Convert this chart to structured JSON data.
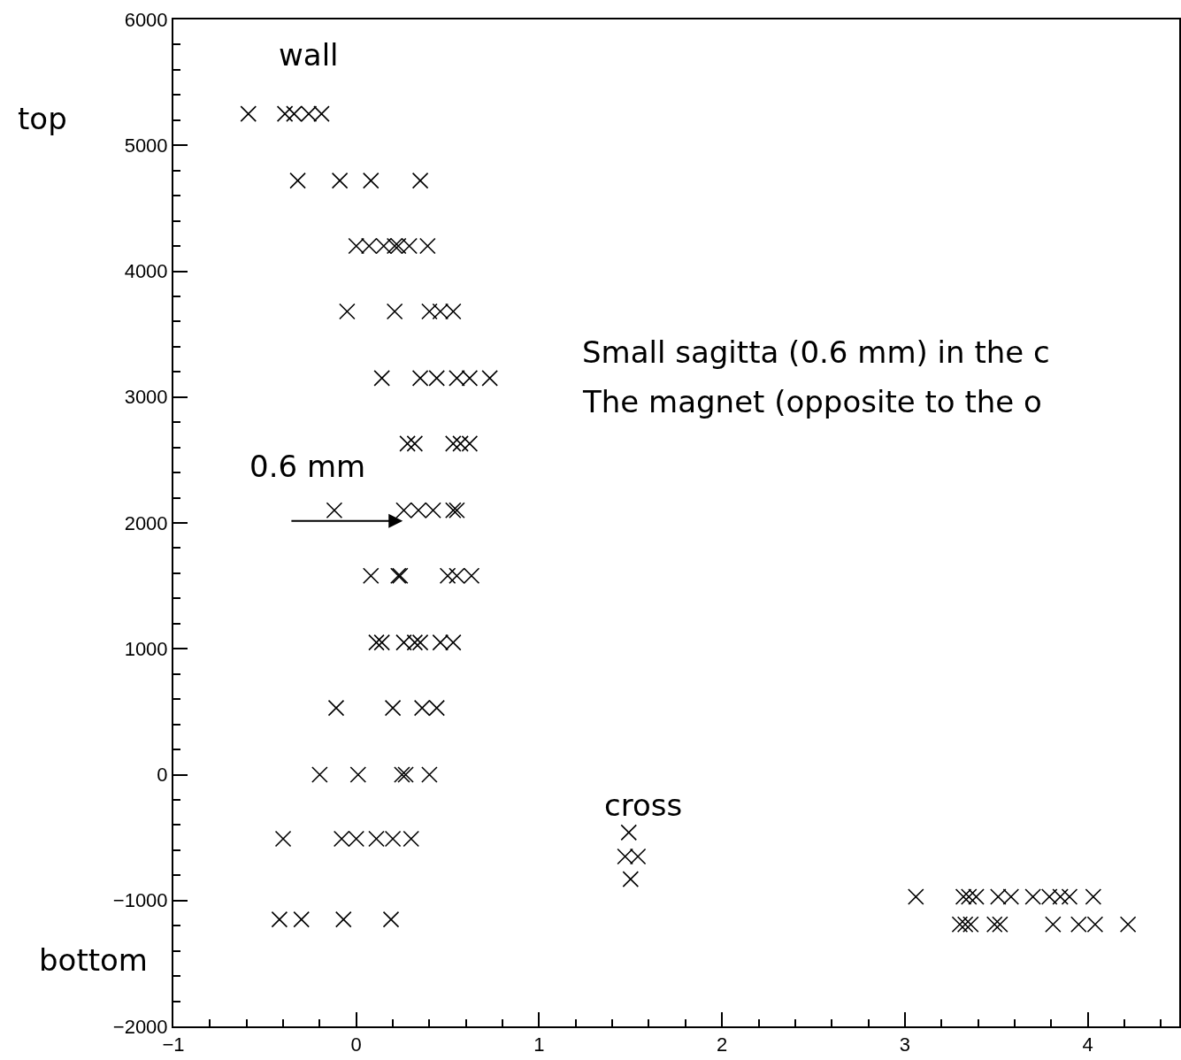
{
  "chart_data": {
    "type": "scatter",
    "marker": "cross",
    "grid": false,
    "xlim": [
      -1,
      4.5
    ],
    "ylim": [
      -2000,
      6000
    ],
    "xticks": [
      -1,
      {
        "value": -0.8,
        "label": null
      },
      {
        "value": -0.6,
        "label": null
      },
      {
        "value": -0.4,
        "label": null
      },
      {
        "value": -0.2,
        "label": null
      },
      0,
      {
        "value": 0.2,
        "label": null
      },
      {
        "value": 0.4,
        "label": null
      },
      {
        "value": 0.6,
        "label": null
      },
      {
        "value": 0.8,
        "label": null
      },
      1,
      {
        "value": 1.2,
        "label": null
      },
      {
        "value": 1.4,
        "label": null
      },
      {
        "value": 1.6,
        "label": null
      },
      {
        "value": 1.8,
        "label": null
      },
      2,
      {
        "value": 2.2,
        "label": null
      },
      {
        "value": 2.4,
        "label": null
      },
      {
        "value": 2.6,
        "label": null
      },
      {
        "value": 2.8,
        "label": null
      },
      3,
      {
        "value": 3.2,
        "label": null
      },
      {
        "value": 3.4,
        "label": null
      },
      {
        "value": 3.6,
        "label": null
      },
      {
        "value": 3.8,
        "label": null
      },
      4,
      {
        "value": 4.2,
        "label": null
      },
      {
        "value": 4.4,
        "label": null
      }
    ],
    "yticks": [
      -2000,
      {
        "value": -1800,
        "label": null
      },
      {
        "value": -1600,
        "label": null
      },
      {
        "value": -1400,
        "label": null
      },
      {
        "value": -1200,
        "label": null
      },
      -1000,
      {
        "value": -800,
        "label": null
      },
      {
        "value": -600,
        "label": null
      },
      {
        "value": -400,
        "label": null
      },
      {
        "value": -200,
        "label": null
      },
      0,
      {
        "value": 200,
        "label": null
      },
      {
        "value": 400,
        "label": null
      },
      {
        "value": 600,
        "label": null
      },
      {
        "value": 800,
        "label": null
      },
      1000,
      {
        "value": 1200,
        "label": null
      },
      {
        "value": 1400,
        "label": null
      },
      {
        "value": 1600,
        "label": null
      },
      {
        "value": 1800,
        "label": null
      },
      2000,
      {
        "value": 2200,
        "label": null
      },
      {
        "value": 2400,
        "label": null
      },
      {
        "value": 2600,
        "label": null
      },
      {
        "value": 2800,
        "label": null
      },
      3000,
      {
        "value": 3200,
        "label": null
      },
      {
        "value": 3400,
        "label": null
      },
      {
        "value": 3600,
        "label": null
      },
      {
        "value": 3800,
        "label": null
      },
      4000,
      {
        "value": 4200,
        "label": null
      },
      {
        "value": 4400,
        "label": null
      },
      {
        "value": 4600,
        "label": null
      },
      {
        "value": 4800,
        "label": null
      },
      5000,
      {
        "value": 5200,
        "label": null
      },
      {
        "value": 5400,
        "label": null
      },
      {
        "value": 5600,
        "label": null
      },
      {
        "value": 5800,
        "label": null
      },
      6000
    ],
    "annotations": [
      "wall",
      "top",
      "Small sagitta (0.6 mm) in the c",
      "The magnet (opposite to the o",
      "0.6 mm",
      "cross",
      "bottom"
    ],
    "series": [
      {
        "color": "#000000",
        "x": [
          -0.59,
          -0.39,
          -0.34,
          -0.26,
          -0.19,
          -0.32,
          -0.09,
          0.08,
          0.35,
          0.0,
          0.07,
          0.15,
          0.21,
          0.23,
          0.29,
          0.39,
          -0.05,
          0.21,
          0.4,
          0.46,
          0.53,
          0.14,
          0.35,
          0.44,
          0.55,
          0.62,
          0.73,
          0.28,
          0.32,
          0.53,
          0.57,
          0.62,
          -0.12,
          0.26,
          0.34,
          0.42,
          0.53,
          0.55,
          0.08,
          0.23,
          0.24,
          0.5,
          0.55,
          0.63,
          0.11,
          0.14,
          0.26,
          0.32,
          0.35,
          0.46,
          0.53,
          -0.11,
          0.2,
          0.36,
          0.44,
          -0.2,
          0.01,
          0.25,
          0.27,
          0.4,
          -0.4,
          -0.08,
          0.0,
          0.11,
          0.2,
          0.3,
          -0.42,
          -0.3,
          -0.07,
          0.19,
          1.49,
          1.47,
          1.54,
          1.5,
          3.06,
          3.32,
          3.35,
          3.39,
          3.51,
          3.58,
          3.7,
          3.79,
          3.85,
          3.9,
          4.03,
          3.3,
          3.33,
          3.36,
          3.49,
          3.52,
          3.81,
          3.95,
          4.04,
          4.22
        ],
        "values": [
          5250,
          5250,
          5250,
          5250,
          5250,
          4720,
          4720,
          4720,
          4720,
          4200,
          4200,
          4200,
          4200,
          4200,
          4200,
          4200,
          3680,
          3680,
          3680,
          3680,
          3680,
          3150,
          3150,
          3150,
          3150,
          3150,
          3150,
          2630,
          2630,
          2630,
          2630,
          2630,
          2100,
          2100,
          2100,
          2100,
          2100,
          2100,
          1580,
          1580,
          1580,
          1580,
          1580,
          1580,
          1050,
          1050,
          1050,
          1050,
          1050,
          1050,
          1050,
          530,
          530,
          530,
          530,
          0,
          0,
          0,
          0,
          0,
          -510,
          -510,
          -510,
          -510,
          -510,
          -510,
          -1150,
          -1150,
          -1150,
          -1150,
          -460,
          -650,
          -650,
          -830,
          -970,
          -970,
          -970,
          -970,
          -970,
          -970,
          -970,
          -970,
          -970,
          -970,
          -970,
          -1190,
          -1190,
          -1190,
          -1190,
          -1190,
          -1190,
          -1190,
          -1190,
          -1190
        ]
      }
    ]
  }
}
